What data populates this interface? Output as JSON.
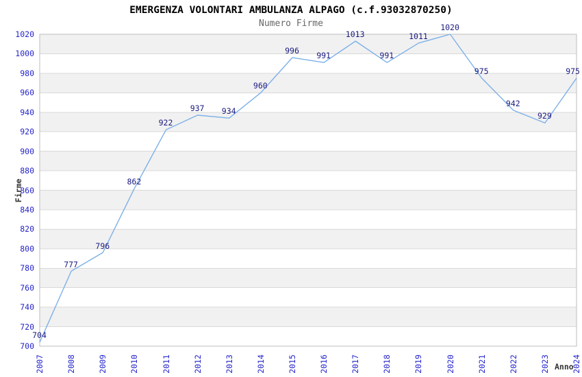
{
  "header": {
    "title": "EMERGENZA VOLONTARI AMBULANZA ALPAGO (c.f.93032870250)",
    "subtitle": "Numero Firme"
  },
  "chart_data": {
    "type": "line",
    "title": "EMERGENZA VOLONTARI AMBULANZA ALPAGO (c.f.93032870250)",
    "subtitle": "Numero Firme",
    "xlabel": "Anno",
    "ylabel": "Firme",
    "categories": [
      "2007",
      "2008",
      "2009",
      "2010",
      "2011",
      "2012",
      "2013",
      "2014",
      "2015",
      "2016",
      "2017",
      "2018",
      "2019",
      "2020",
      "2021",
      "2022",
      "2023",
      "2024"
    ],
    "values": [
      704,
      777,
      796,
      862,
      922,
      937,
      934,
      960,
      996,
      991,
      1013,
      991,
      1011,
      1020,
      975,
      942,
      929,
      975
    ],
    "ylim": [
      700,
      1020
    ],
    "ytick_step": 20,
    "grid": true,
    "legend": "none",
    "colors": {
      "line": "#7cb0e8",
      "tick_label": "#2424cc",
      "data_label": "#1a1a80",
      "band": "#f1f1f1",
      "gridline": "#d9d9d9",
      "plot_border": "#bdbdbd",
      "title": "#000000",
      "subtitle": "#666666",
      "axis_title": "#333333"
    }
  }
}
